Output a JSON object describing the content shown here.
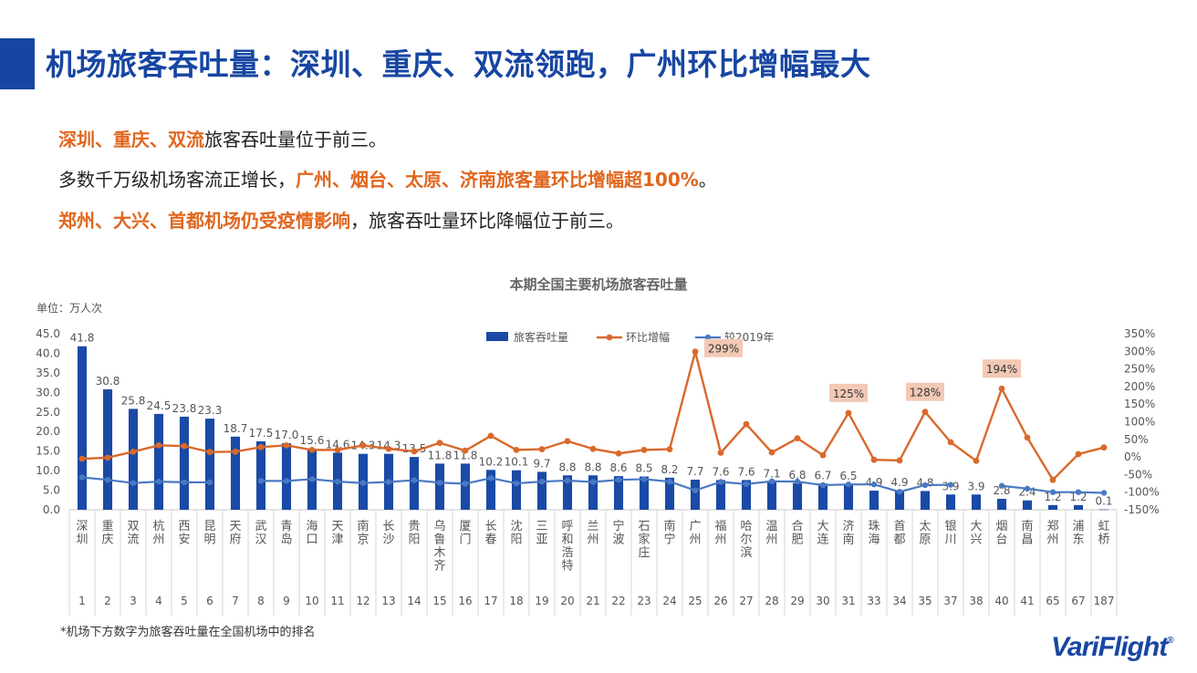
{
  "header": {
    "title": "机场旅客吞吐量：深圳、重庆、双流领跑，广州环比增幅最大"
  },
  "summary": {
    "line1": {
      "hl": "深圳、重庆、双流",
      "rest": "旅客吞吐量位于前三。"
    },
    "line2": {
      "pre": "多数千万级机场客流正增长，",
      "hl": "广州、烟台、太原、济南旅客量环比增幅超100%",
      "post": "。"
    },
    "line3": {
      "hl": "郑州、大兴、首都机场仍受疫情影响",
      "rest": "，旅客吞吐量环比降幅位于前三。"
    }
  },
  "footnote": "*机场下方数字为旅客吞吐量在全国机场中的排名",
  "logo": {
    "text": "VariFlight",
    "mark": "®"
  },
  "colors": {
    "bar": "#1a4aa6",
    "mom": "#d9692b",
    "vs2019": "#4a78c2",
    "title": "#1746a2",
    "highlight": "#e0661d",
    "callout_bg": "#f3c9b5"
  },
  "chart_data": {
    "type": "bar",
    "title": "本期全国主要机场旅客吞吐量",
    "unit_label": "单位：万人次",
    "legend": [
      "旅客吞吐量",
      "环比增幅",
      "较2019年"
    ],
    "legend_position": "top",
    "categories": [
      "深圳",
      "重庆",
      "双流",
      "杭州",
      "西安",
      "昆明",
      "天府",
      "武汉",
      "青岛",
      "海口",
      "天津",
      "南京",
      "长沙",
      "贵阳",
      "乌鲁木齐",
      "厦门",
      "长春",
      "沈阳",
      "三亚",
      "呼和浩特",
      "兰州",
      "宁波",
      "石家庄",
      "南宁",
      "广州",
      "福州",
      "哈尔滨",
      "温州",
      "合肥",
      "大连",
      "济南",
      "珠海",
      "首都",
      "太原",
      "银川",
      "大兴",
      "烟台",
      "南昌",
      "郑州",
      "浦东",
      "虹桥"
    ],
    "ranks": [
      "1",
      "2",
      "3",
      "4",
      "5",
      "6",
      "7",
      "8",
      "9",
      "10",
      "11",
      "12",
      "13",
      "14",
      "15",
      "16",
      "17",
      "18",
      "19",
      "20",
      "21",
      "22",
      "23",
      "24",
      "25",
      "26",
      "27",
      "28",
      "29",
      "30",
      "31",
      "33",
      "34",
      "35",
      "37",
      "38",
      "40",
      "41",
      "65",
      "67",
      "187"
    ],
    "values": [
      41.8,
      30.8,
      25.8,
      24.5,
      23.8,
      23.3,
      18.7,
      17.5,
      17.0,
      15.6,
      14.6,
      14.3,
      14.3,
      13.5,
      11.8,
      11.8,
      10.2,
      10.1,
      9.7,
      8.8,
      8.8,
      8.6,
      8.5,
      8.2,
      7.7,
      7.6,
      7.6,
      7.1,
      6.8,
      6.7,
      6.5,
      4.9,
      4.9,
      4.8,
      3.9,
      3.9,
      2.8,
      2.4,
      1.2,
      1.2,
      0.1
    ],
    "value_labels": [
      "41.8",
      "30.8",
      "25.8",
      "24.5",
      "23.8",
      "23.3",
      "18.7",
      "17.5",
      "17.0",
      "15.6",
      "14.6",
      "14.3",
      "14.3",
      "13.5",
      "11.8",
      "11.8",
      "10.2",
      "10.1",
      "9.7",
      "8.8",
      "8.8",
      "8.6",
      "8.5",
      "8.2",
      "7.7",
      "7.6",
      "7.6",
      "7.1",
      "6.8",
      "6.7",
      "6.5",
      "4.9",
      "4.9",
      "4.8",
      "3.9",
      "3.9",
      "2.8",
      "2.4",
      "1.2",
      "1.2",
      "0.1"
    ],
    "series_mom": {
      "name": "环比增幅",
      "values": [
        -5,
        -2,
        15,
        33,
        31,
        14,
        15,
        28,
        33,
        20,
        20,
        33,
        23,
        16,
        40,
        18,
        60,
        20,
        22,
        45,
        23,
        10,
        20,
        22,
        299,
        12,
        93,
        13,
        53,
        5,
        125,
        -8,
        -10,
        128,
        42,
        -11,
        194,
        55,
        -65,
        8,
        27
      ]
    },
    "series_2019": {
      "name": "较2019年",
      "values": [
        -58,
        -65,
        -74,
        -70,
        -72,
        -72,
        null,
        -68,
        -68,
        -63,
        -70,
        -74,
        -71,
        -66,
        -73,
        -76,
        -60,
        -75,
        -70,
        -67,
        -71,
        -65,
        -63,
        -70,
        -95,
        -71,
        -77,
        -69,
        -70,
        -80,
        -78,
        -78,
        -99,
        -80,
        -79,
        null,
        -82,
        -90,
        -100,
        -100,
        -102
      ]
    },
    "callouts": [
      {
        "index": 24,
        "label": "299%"
      },
      {
        "index": 30,
        "label": "125%"
      },
      {
        "index": 33,
        "label": "128%"
      },
      {
        "index": 36,
        "label": "194%"
      }
    ],
    "y_left": {
      "min": 0,
      "max": 45,
      "step": 5,
      "ticks": [
        "0.0",
        "5.0",
        "10.0",
        "15.0",
        "20.0",
        "25.0",
        "30.0",
        "35.0",
        "40.0",
        "45.0"
      ]
    },
    "y_right": {
      "min": -150,
      "max": 350,
      "step": 50,
      "ticks": [
        "-150%",
        "-100%",
        "-50%",
        "0%",
        "50%",
        "100%",
        "150%",
        "200%",
        "250%",
        "300%",
        "350%"
      ]
    }
  }
}
